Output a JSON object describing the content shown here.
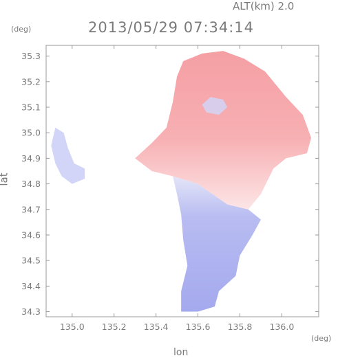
{
  "header": {
    "alt_label": "ALT(km) 2.0",
    "timestamp": "2013/05/29 07:34:14"
  },
  "units": {
    "lat_unit": "(deg)",
    "lon_unit": "(deg)"
  },
  "axes": {
    "xlabel": "lon",
    "ylabel": "lat",
    "xlim": [
      134.876,
      136.176
    ],
    "ylim": [
      34.28,
      35.342
    ],
    "xticks": [
      {
        "value": 135.0,
        "label": "135.0"
      },
      {
        "value": 135.2,
        "label": "135.2"
      },
      {
        "value": 135.4,
        "label": "135.4"
      },
      {
        "value": 135.6,
        "label": "135.6"
      },
      {
        "value": 135.8,
        "label": "135.8"
      },
      {
        "value": 136.0,
        "label": "136.0"
      }
    ],
    "yticks": [
      {
        "value": 34.3,
        "label": "34.3"
      },
      {
        "value": 34.4,
        "label": "34.4"
      },
      {
        "value": 34.5,
        "label": "34.5"
      },
      {
        "value": 34.6,
        "label": "34.6"
      },
      {
        "value": 34.7,
        "label": "34.7"
      },
      {
        "value": 34.8,
        "label": "34.8"
      },
      {
        "value": 34.9,
        "label": "34.9"
      },
      {
        "value": 35.0,
        "label": "35.0"
      },
      {
        "value": 35.1,
        "label": "35.1"
      },
      {
        "value": 35.2,
        "label": "35.2"
      },
      {
        "value": 35.3,
        "label": "35.3"
      }
    ]
  },
  "colors": {
    "positive": "#f7a9ad",
    "positive_light": "#fbd0d2",
    "negative": "#a9aef2",
    "negative_light": "#d2d5f7",
    "axis": "#999999"
  },
  "field": {
    "north_positive_region": [
      [
        135.53,
        35.28
      ],
      [
        135.62,
        35.31
      ],
      [
        135.72,
        35.32
      ],
      [
        135.82,
        35.29
      ],
      [
        135.92,
        35.24
      ],
      [
        136.02,
        35.14
      ],
      [
        136.1,
        35.07
      ],
      [
        136.14,
        34.98
      ],
      [
        136.12,
        34.92
      ],
      [
        136.02,
        34.9
      ],
      [
        135.96,
        34.86
      ],
      [
        135.9,
        34.76
      ],
      [
        135.84,
        34.7
      ],
      [
        135.74,
        34.72
      ],
      [
        135.6,
        34.8
      ],
      [
        135.48,
        34.83
      ],
      [
        135.38,
        34.85
      ],
      [
        135.3,
        34.9
      ],
      [
        135.38,
        34.96
      ],
      [
        135.45,
        35.02
      ],
      [
        135.48,
        35.12
      ],
      [
        135.5,
        35.22
      ]
    ],
    "south_negative_region": [
      [
        135.48,
        34.83
      ],
      [
        135.6,
        34.8
      ],
      [
        135.74,
        34.72
      ],
      [
        135.84,
        34.7
      ],
      [
        135.9,
        34.66
      ],
      [
        135.86,
        34.6
      ],
      [
        135.8,
        34.52
      ],
      [
        135.78,
        34.44
      ],
      [
        135.7,
        34.38
      ],
      [
        135.68,
        34.32
      ],
      [
        135.6,
        34.3
      ],
      [
        135.52,
        34.3
      ],
      [
        135.52,
        34.38
      ],
      [
        135.55,
        34.48
      ],
      [
        135.53,
        34.58
      ],
      [
        135.52,
        34.68
      ],
      [
        135.5,
        34.76
      ]
    ],
    "west_negative_region": [
      [
        134.92,
        35.02
      ],
      [
        134.96,
        35.0
      ],
      [
        134.98,
        34.94
      ],
      [
        135.01,
        34.88
      ],
      [
        135.06,
        34.86
      ],
      [
        135.06,
        34.82
      ],
      [
        135.0,
        34.8
      ],
      [
        134.95,
        34.83
      ],
      [
        134.92,
        34.88
      ],
      [
        134.9,
        34.95
      ]
    ],
    "low_patch": [
      [
        135.66,
        35.14
      ],
      [
        135.72,
        35.13
      ],
      [
        135.74,
        35.1
      ],
      [
        135.7,
        35.07
      ],
      [
        135.64,
        35.08
      ],
      [
        135.62,
        35.11
      ]
    ]
  }
}
